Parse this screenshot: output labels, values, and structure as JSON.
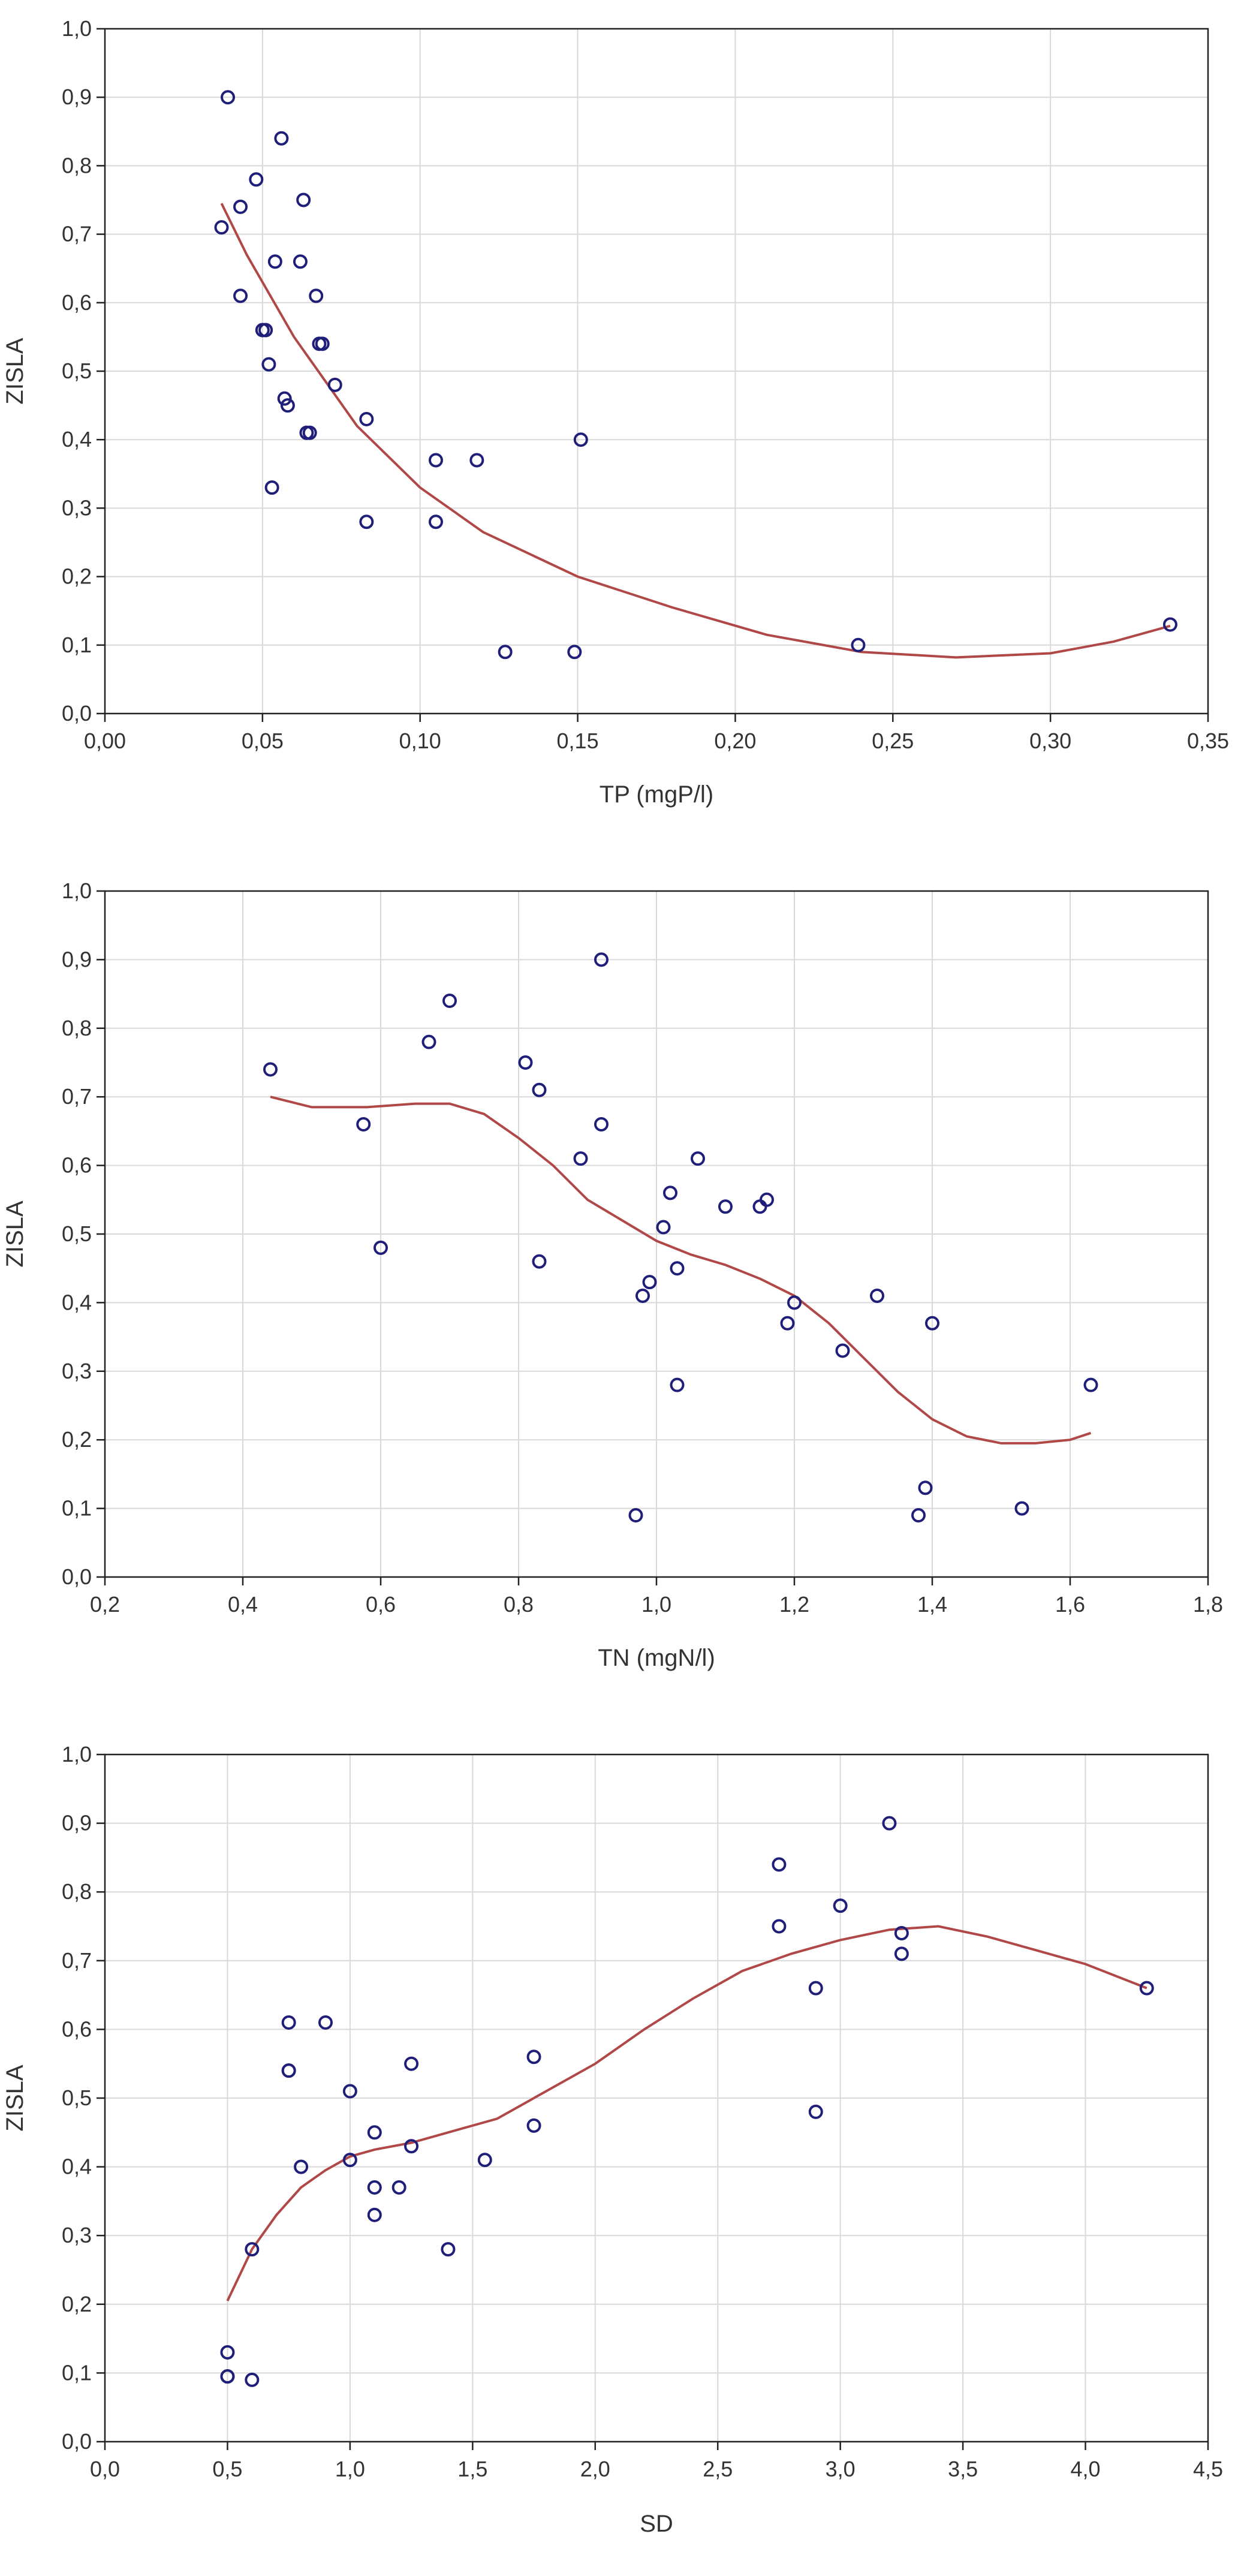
{
  "colors": {
    "points": "#1f1f7a",
    "curve": "#b04848",
    "grid": "#d9d9d9",
    "axis": "#222222"
  },
  "chart_data": [
    {
      "type": "scatter",
      "title": "",
      "xlabel": "TP (mgP/l)",
      "ylabel": "ZISLA",
      "xlim": [
        0.0,
        0.35
      ],
      "ylim": [
        0.0,
        1.0
      ],
      "xticks": [
        0.0,
        0.05,
        0.1,
        0.15,
        0.2,
        0.25,
        0.3,
        0.35
      ],
      "xtick_labels": [
        "0,00",
        "0,05",
        "0,10",
        "0,15",
        "0,20",
        "0,25",
        "0,30",
        "0,35"
      ],
      "yticks": [
        0.0,
        0.1,
        0.2,
        0.3,
        0.4,
        0.5,
        0.6,
        0.7,
        0.8,
        0.9,
        1.0
      ],
      "ytick_labels": [
        "0,0",
        "0,1",
        "0,2",
        "0,3",
        "0,4",
        "0,5",
        "0,6",
        "0,7",
        "0,8",
        "0,9",
        "1,0"
      ],
      "grid": true,
      "legend": "none",
      "points": [
        [
          0.039,
          0.9
        ],
        [
          0.037,
          0.71
        ],
        [
          0.043,
          0.74
        ],
        [
          0.043,
          0.61
        ],
        [
          0.048,
          0.78
        ],
        [
          0.05,
          0.56
        ],
        [
          0.051,
          0.56
        ],
        [
          0.052,
          0.51
        ],
        [
          0.053,
          0.33
        ],
        [
          0.054,
          0.66
        ],
        [
          0.056,
          0.84
        ],
        [
          0.057,
          0.46
        ],
        [
          0.058,
          0.45
        ],
        [
          0.062,
          0.66
        ],
        [
          0.063,
          0.75
        ],
        [
          0.064,
          0.41
        ],
        [
          0.065,
          0.41
        ],
        [
          0.067,
          0.61
        ],
        [
          0.068,
          0.54
        ],
        [
          0.069,
          0.54
        ],
        [
          0.073,
          0.48
        ],
        [
          0.083,
          0.43
        ],
        [
          0.083,
          0.28
        ],
        [
          0.105,
          0.37
        ],
        [
          0.105,
          0.28
        ],
        [
          0.118,
          0.37
        ],
        [
          0.127,
          0.09
        ],
        [
          0.149,
          0.09
        ],
        [
          0.151,
          0.4
        ],
        [
          0.239,
          0.1
        ],
        [
          0.338,
          0.13
        ]
      ],
      "fit_curve": [
        [
          0.037,
          0.745
        ],
        [
          0.045,
          0.67
        ],
        [
          0.06,
          0.55
        ],
        [
          0.08,
          0.42
        ],
        [
          0.1,
          0.33
        ],
        [
          0.12,
          0.265
        ],
        [
          0.15,
          0.2
        ],
        [
          0.18,
          0.155
        ],
        [
          0.21,
          0.115
        ],
        [
          0.24,
          0.09
        ],
        [
          0.27,
          0.082
        ],
        [
          0.3,
          0.088
        ],
        [
          0.32,
          0.105
        ],
        [
          0.338,
          0.128
        ]
      ]
    },
    {
      "type": "scatter",
      "title": "",
      "xlabel": "TN (mgN/l)",
      "ylabel": "ZISLA",
      "xlim": [
        0.2,
        1.8
      ],
      "ylim": [
        0.0,
        1.0
      ],
      "xticks": [
        0.2,
        0.4,
        0.6,
        0.8,
        1.0,
        1.2,
        1.4,
        1.6,
        1.8
      ],
      "xtick_labels": [
        "0,2",
        "0,4",
        "0,6",
        "0,8",
        "1,0",
        "1,2",
        "1,4",
        "1,6",
        "1,8"
      ],
      "yticks": [
        0.0,
        0.1,
        0.2,
        0.3,
        0.4,
        0.5,
        0.6,
        0.7,
        0.8,
        0.9,
        1.0
      ],
      "ytick_labels": [
        "0,0",
        "0,1",
        "0,2",
        "0,3",
        "0,4",
        "0,5",
        "0,6",
        "0,7",
        "0,8",
        "0,9",
        "1,0"
      ],
      "grid": true,
      "legend": "none",
      "points": [
        [
          0.44,
          0.74
        ],
        [
          0.575,
          0.66
        ],
        [
          0.6,
          0.48
        ],
        [
          0.67,
          0.78
        ],
        [
          0.7,
          0.84
        ],
        [
          0.81,
          0.75
        ],
        [
          0.83,
          0.71
        ],
        [
          0.83,
          0.46
        ],
        [
          0.89,
          0.61
        ],
        [
          0.92,
          0.9
        ],
        [
          0.92,
          0.66
        ],
        [
          0.97,
          0.09
        ],
        [
          0.98,
          0.41
        ],
        [
          0.99,
          0.43
        ],
        [
          1.01,
          0.51
        ],
        [
          1.02,
          0.56
        ],
        [
          1.03,
          0.45
        ],
        [
          1.03,
          0.28
        ],
        [
          1.06,
          0.61
        ],
        [
          1.1,
          0.54
        ],
        [
          1.15,
          0.54
        ],
        [
          1.16,
          0.55
        ],
        [
          1.19,
          0.37
        ],
        [
          1.2,
          0.4
        ],
        [
          1.27,
          0.33
        ],
        [
          1.32,
          0.41
        ],
        [
          1.38,
          0.09
        ],
        [
          1.39,
          0.13
        ],
        [
          1.4,
          0.37
        ],
        [
          1.53,
          0.1
        ],
        [
          1.63,
          0.28
        ]
      ],
      "fit_curve": [
        [
          0.44,
          0.7
        ],
        [
          0.5,
          0.685
        ],
        [
          0.58,
          0.685
        ],
        [
          0.65,
          0.69
        ],
        [
          0.7,
          0.69
        ],
        [
          0.75,
          0.675
        ],
        [
          0.8,
          0.64
        ],
        [
          0.85,
          0.6
        ],
        [
          0.9,
          0.55
        ],
        [
          0.95,
          0.52
        ],
        [
          1.0,
          0.49
        ],
        [
          1.05,
          0.47
        ],
        [
          1.1,
          0.455
        ],
        [
          1.15,
          0.435
        ],
        [
          1.2,
          0.41
        ],
        [
          1.25,
          0.37
        ],
        [
          1.3,
          0.32
        ],
        [
          1.35,
          0.27
        ],
        [
          1.4,
          0.23
        ],
        [
          1.45,
          0.205
        ],
        [
          1.5,
          0.195
        ],
        [
          1.55,
          0.195
        ],
        [
          1.6,
          0.2
        ],
        [
          1.63,
          0.21
        ]
      ]
    },
    {
      "type": "scatter",
      "title": "",
      "xlabel": "SD",
      "ylabel": "ZISLA",
      "xlim": [
        0.0,
        4.5
      ],
      "ylim": [
        0.0,
        1.0
      ],
      "xticks": [
        0.0,
        0.5,
        1.0,
        1.5,
        2.0,
        2.5,
        3.0,
        3.5,
        4.0,
        4.5
      ],
      "xtick_labels": [
        "0,0",
        "0,5",
        "1,0",
        "1,5",
        "2,0",
        "2,5",
        "3,0",
        "3,5",
        "4,0",
        "4,5"
      ],
      "yticks": [
        0.0,
        0.1,
        0.2,
        0.3,
        0.4,
        0.5,
        0.6,
        0.7,
        0.8,
        0.9,
        1.0
      ],
      "ytick_labels": [
        "0,0",
        "0,1",
        "0,2",
        "0,3",
        "0,4",
        "0,5",
        "0,6",
        "0,7",
        "0,8",
        "0,9",
        "1,0"
      ],
      "grid": true,
      "legend": "none",
      "points": [
        [
          0.5,
          0.13
        ],
        [
          0.5,
          0.095
        ],
        [
          0.5,
          0.095
        ],
        [
          0.6,
          0.09
        ],
        [
          0.6,
          0.28
        ],
        [
          0.75,
          0.61
        ],
        [
          0.75,
          0.54
        ],
        [
          0.75,
          0.54
        ],
        [
          0.8,
          0.4
        ],
        [
          0.9,
          0.61
        ],
        [
          1.0,
          0.51
        ],
        [
          1.0,
          0.41
        ],
        [
          1.1,
          0.45
        ],
        [
          1.1,
          0.37
        ],
        [
          1.1,
          0.33
        ],
        [
          1.2,
          0.37
        ],
        [
          1.25,
          0.43
        ],
        [
          1.25,
          0.55
        ],
        [
          1.4,
          0.28
        ],
        [
          1.55,
          0.41
        ],
        [
          1.75,
          0.56
        ],
        [
          1.75,
          0.46
        ],
        [
          2.75,
          0.84
        ],
        [
          2.75,
          0.75
        ],
        [
          2.9,
          0.66
        ],
        [
          2.9,
          0.48
        ],
        [
          3.0,
          0.78
        ],
        [
          3.2,
          0.9
        ],
        [
          3.25,
          0.74
        ],
        [
          3.25,
          0.71
        ],
        [
          4.25,
          0.66
        ]
      ],
      "fit_curve": [
        [
          0.5,
          0.205
        ],
        [
          0.6,
          0.28
        ],
        [
          0.7,
          0.33
        ],
        [
          0.8,
          0.37
        ],
        [
          0.9,
          0.395
        ],
        [
          1.0,
          0.415
        ],
        [
          1.1,
          0.425
        ],
        [
          1.25,
          0.435
        ],
        [
          1.4,
          0.45
        ],
        [
          1.6,
          0.47
        ],
        [
          1.8,
          0.51
        ],
        [
          2.0,
          0.55
        ],
        [
          2.2,
          0.6
        ],
        [
          2.4,
          0.645
        ],
        [
          2.6,
          0.685
        ],
        [
          2.8,
          0.71
        ],
        [
          3.0,
          0.73
        ],
        [
          3.2,
          0.745
        ],
        [
          3.4,
          0.75
        ],
        [
          3.6,
          0.735
        ],
        [
          3.8,
          0.715
        ],
        [
          4.0,
          0.695
        ],
        [
          4.25,
          0.66
        ]
      ]
    }
  ]
}
